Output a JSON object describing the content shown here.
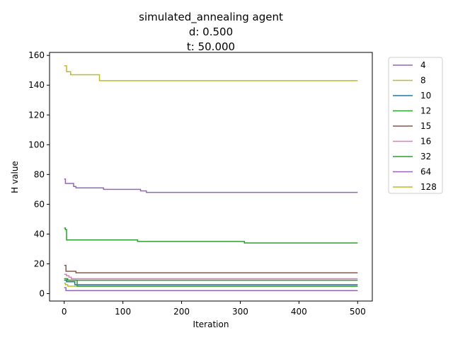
{
  "chart_data": {
    "type": "line",
    "title_lines": [
      "simulated_annealing agent",
      "d:   0.500",
      "t:  50.000"
    ],
    "xlabel": "Iteration",
    "ylabel": "H value",
    "xlim": [
      -25,
      525
    ],
    "ylim": [
      -5,
      162
    ],
    "x_ticks": [
      0,
      100,
      200,
      300,
      400,
      500
    ],
    "y_ticks": [
      0,
      20,
      40,
      60,
      80,
      100,
      120,
      140,
      160
    ],
    "grid": false,
    "legend_position": "outside right, top",
    "series": [
      {
        "name": "4",
        "color": "#9467bd",
        "steps": [
          [
            0,
            4
          ],
          [
            3,
            2
          ],
          [
            500,
            2
          ]
        ]
      },
      {
        "name": "8",
        "color": "#bcbd22",
        "steps": [
          [
            0,
            7
          ],
          [
            2,
            6
          ],
          [
            6,
            5
          ],
          [
            500,
            5
          ]
        ]
      },
      {
        "name": "10",
        "color": "#1f77b4",
        "steps": [
          [
            0,
            9
          ],
          [
            4,
            8
          ],
          [
            18,
            6
          ],
          [
            500,
            6
          ]
        ]
      },
      {
        "name": "12",
        "color": "#2ca02c",
        "steps": [
          [
            0,
            10
          ],
          [
            5,
            9
          ],
          [
            22,
            5
          ],
          [
            500,
            5
          ]
        ]
      },
      {
        "name": "15",
        "color": "#8c564b",
        "steps": [
          [
            0,
            19
          ],
          [
            3,
            15
          ],
          [
            20,
            14
          ],
          [
            500,
            14
          ]
        ]
      },
      {
        "name": "16",
        "color": "#e377c2",
        "steps": [
          [
            0,
            13
          ],
          [
            4,
            12
          ],
          [
            8,
            11
          ],
          [
            12,
            10
          ],
          [
            500,
            10
          ]
        ]
      },
      {
        "name": "32",
        "color": "#2ca02c",
        "steps": [
          [
            0,
            44
          ],
          [
            2,
            43
          ],
          [
            4,
            36
          ],
          [
            125,
            35
          ],
          [
            307,
            34
          ],
          [
            500,
            34
          ]
        ]
      },
      {
        "name": "64",
        "color": "#9467bd",
        "steps": [
          [
            0,
            77
          ],
          [
            2,
            74
          ],
          [
            16,
            72
          ],
          [
            20,
            71
          ],
          [
            67,
            70
          ],
          [
            130,
            69
          ],
          [
            140,
            68
          ],
          [
            500,
            68
          ]
        ]
      },
      {
        "name": "128",
        "color": "#bcbd22",
        "steps": [
          [
            0,
            153
          ],
          [
            4,
            149
          ],
          [
            11,
            147
          ],
          [
            60,
            143
          ],
          [
            500,
            143
          ]
        ]
      },
      {
        "name": "",
        "color": "#2ca02c",
        "steps": [
          [
            0,
            10
          ],
          [
            6,
            9
          ],
          [
            75,
            9
          ],
          [
            500,
            9
          ]
        ]
      }
    ]
  }
}
